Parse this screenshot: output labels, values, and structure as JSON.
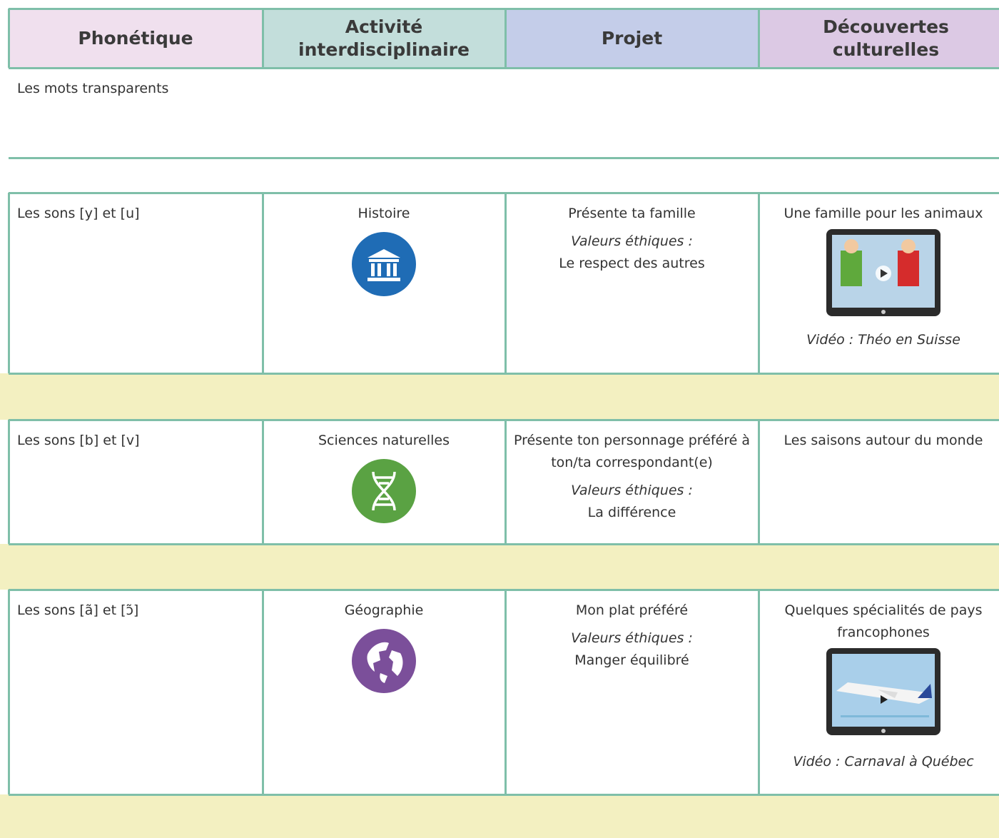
{
  "header": {
    "columns": [
      "Phonétique",
      "Activité interdisciplinaire",
      "Projet",
      "Découvertes culturelles"
    ]
  },
  "rows": [
    {
      "phonetique": "Les mots transparents",
      "activite": null,
      "projet": null,
      "decouvertes": null
    },
    {
      "phonetique": "Les sons [y] et [u]",
      "activite": "Histoire",
      "projet": {
        "title": "Présente ta famille",
        "values_label": "Valeurs éthiques :",
        "values": "Le respect des autres"
      },
      "decouvertes": {
        "title": "Une famille pour les animaux",
        "video": "Vidéo : Théo en Suisse"
      }
    },
    {
      "phonetique": "Les sons [b] et [v]",
      "activite": "Sciences naturelles",
      "projet": {
        "title": "Présente ton personnage préféré à ton/ta correspondant(e)",
        "values_label": "Valeurs éthiques :",
        "values": "La différence"
      },
      "decouvertes": {
        "title": "Les saisons autour du monde",
        "video": null
      }
    },
    {
      "phonetique": "Les sons [ã] et [ɔ̃]",
      "activite": "Géographie",
      "projet": {
        "title": "Mon plat préféré",
        "values_label": "Valeurs éthiques :",
        "values": "Manger équilibré"
      },
      "decouvertes": {
        "title": "Quelques spécialités de pays francophones",
        "video": "Vidéo : Carnaval à Québec"
      }
    }
  ]
}
